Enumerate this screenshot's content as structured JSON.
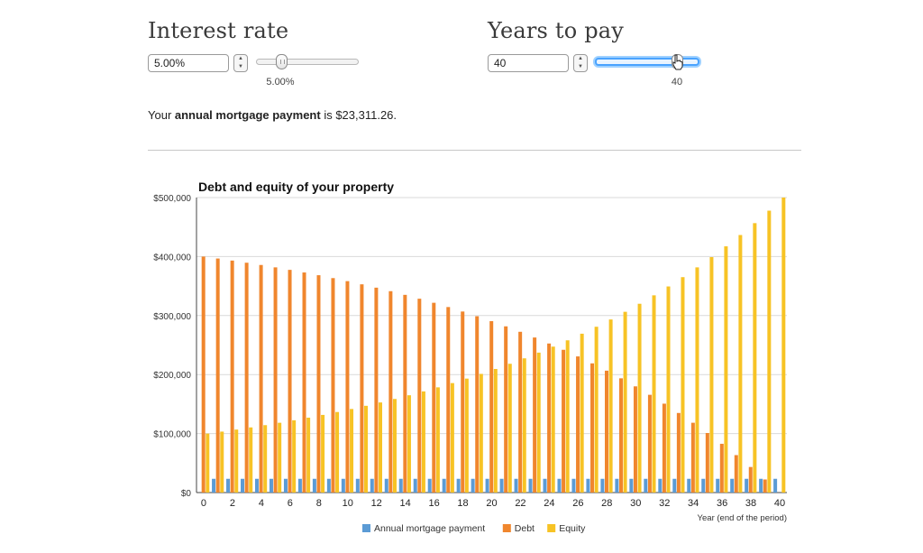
{
  "interest": {
    "title": "Interest rate",
    "input_value": "5.00%",
    "slider_value": "5.00%",
    "slider_fraction": 0.25
  },
  "years": {
    "title": "Years to pay",
    "input_value": "40",
    "slider_value": "40",
    "slider_fraction": 0.82
  },
  "payment": {
    "prefix": "Your ",
    "bold": "annual mortgage payment",
    "suffix": " is $23,311.26."
  },
  "chart_data": {
    "type": "bar",
    "title": "Debt and equity of your property",
    "xlabel": "Year (end of the period)",
    "ylabel": "",
    "ylim": [
      0,
      500000
    ],
    "yticks": [
      0,
      100000,
      200000,
      300000,
      400000,
      500000
    ],
    "ytick_labels": [
      "$0",
      "$100,000",
      "$200,000",
      "$300,000",
      "$400,000",
      "$500,000"
    ],
    "xtick_labels": [
      "0",
      "2",
      "4",
      "6",
      "8",
      "10",
      "12",
      "14",
      "16",
      "18",
      "20",
      "22",
      "24",
      "26",
      "28",
      "30",
      "32",
      "34",
      "36",
      "38",
      "40"
    ],
    "grid": true,
    "legend_position": "bottom",
    "x": [
      0,
      1,
      2,
      3,
      4,
      5,
      6,
      7,
      8,
      9,
      10,
      11,
      12,
      13,
      14,
      15,
      16,
      17,
      18,
      19,
      20,
      21,
      22,
      23,
      24,
      25,
      26,
      27,
      28,
      29,
      30,
      31,
      32,
      33,
      34,
      35,
      36,
      37,
      38,
      39,
      40
    ],
    "series": [
      {
        "name": "Annual mortgage payment",
        "color": "#5b9bd5",
        "values": [
          null,
          23311,
          23311,
          23311,
          23311,
          23311,
          23311,
          23311,
          23311,
          23311,
          23311,
          23311,
          23311,
          23311,
          23311,
          23311,
          23311,
          23311,
          23311,
          23311,
          23311,
          23311,
          23311,
          23311,
          23311,
          23311,
          23311,
          23311,
          23311,
          23311,
          23311,
          23311,
          23311,
          23311,
          23311,
          23311,
          23311,
          23311,
          23311,
          23311,
          23311
        ]
      },
      {
        "name": "Debt",
        "color": "#f0862d",
        "values": [
          400000,
          396689,
          393212,
          389561,
          385728,
          381703,
          377477,
          373040,
          368381,
          363489,
          358352,
          352958,
          347295,
          341349,
          335105,
          328549,
          321665,
          314437,
          306848,
          298878,
          290511,
          281725,
          272500,
          262814,
          252643,
          241964,
          230751,
          218977,
          206615,
          193634,
          180005,
          165694,
          150668,
          134890,
          118324,
          100929,
          82664,
          63486,
          43349,
          22205,
          0
        ]
      },
      {
        "name": "Equity",
        "color": "#f7c325",
        "values": [
          100000,
          103311,
          106788,
          110439,
          114272,
          118297,
          122523,
          126960,
          131619,
          136511,
          141648,
          147042,
          152705,
          158651,
          164895,
          171451,
          178335,
          185563,
          193152,
          201122,
          209489,
          218275,
          227500,
          237186,
          247357,
          258036,
          269249,
          281023,
          293385,
          306366,
          319995,
          334306,
          349332,
          365110,
          381676,
          399071,
          417336,
          436514,
          456651,
          477795,
          500000
        ]
      }
    ]
  }
}
